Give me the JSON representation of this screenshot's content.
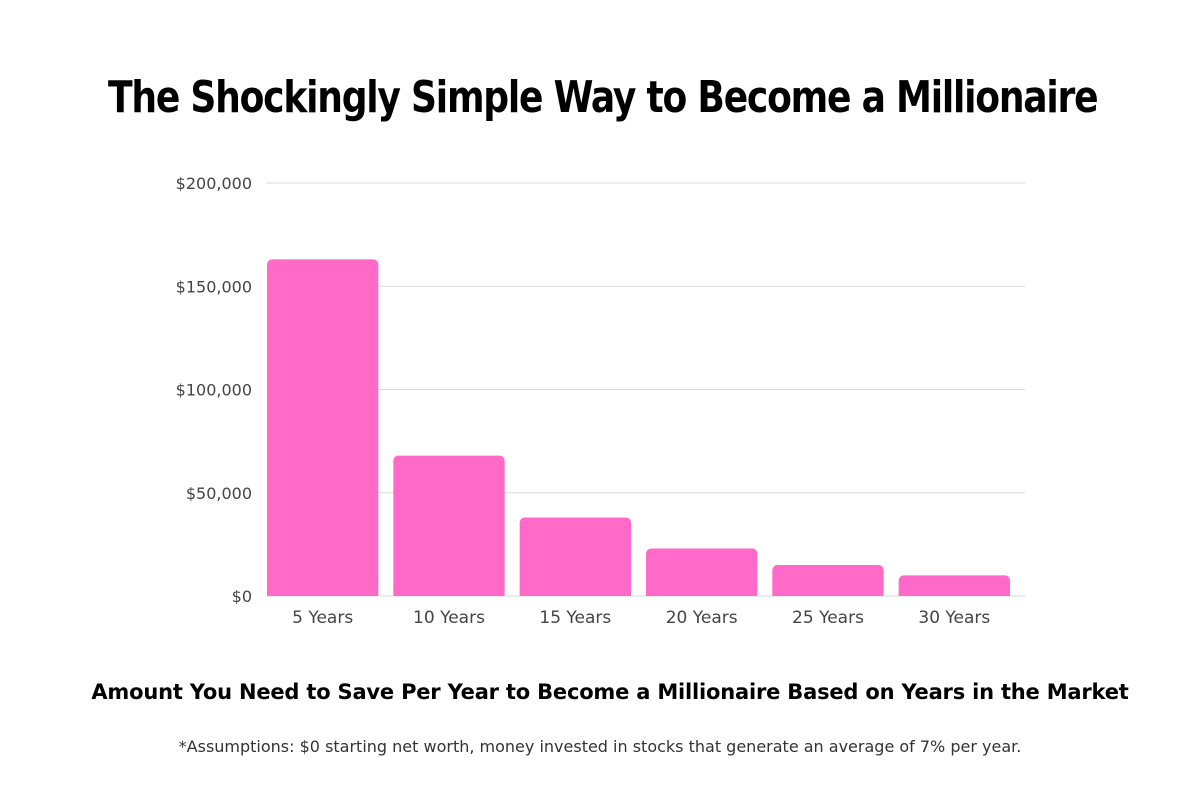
{
  "title": "The Shockingly Simple Way to Become a Millionaire",
  "subtitle": "Amount You Need to Save Per Year to Become a Millionaire Based on Years in the Market",
  "footnote": "*Assumptions: $0 starting net worth, money invested in stocks that generate an average of 7% per year.",
  "colors": {
    "bar": "#ff69c8",
    "grid": "#d9d9d9",
    "tick_text": "#444444"
  },
  "chart_data": {
    "type": "bar",
    "title": "",
    "xlabel": "",
    "ylabel": "",
    "categories": [
      "5 Years",
      "10 Years",
      "15 Years",
      "20 Years",
      "25 Years",
      "30 Years"
    ],
    "values": [
      163000,
      68000,
      38000,
      23000,
      15000,
      10000
    ],
    "ylim": [
      0,
      200000
    ],
    "yticks": [
      0,
      50000,
      100000,
      150000,
      200000
    ],
    "ytick_labels": [
      "$0",
      "$50,000",
      "$100,000",
      "$150,000",
      "$200,000"
    ],
    "grid": true,
    "legend": "none"
  }
}
